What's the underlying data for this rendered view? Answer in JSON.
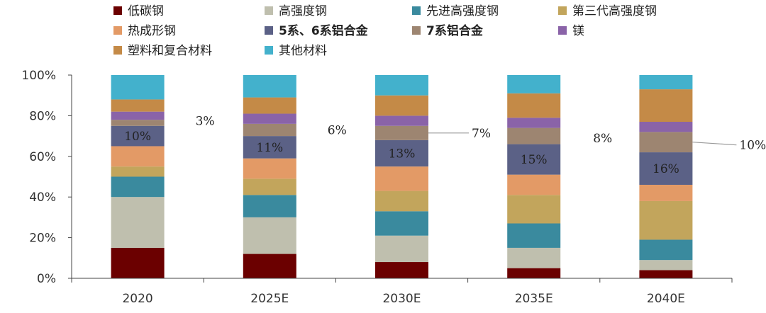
{
  "chart_data": {
    "type": "bar",
    "stacked": true,
    "categories": [
      "2020",
      "2025E",
      "2030E",
      "2035E",
      "2040E"
    ],
    "ylim": [
      0,
      100
    ],
    "yticks": [
      "0%",
      "20%",
      "40%",
      "60%",
      "80%",
      "100%"
    ],
    "legend_position": "top",
    "series": [
      {
        "name": "低碳钢",
        "color": "#6b0000",
        "bold": false,
        "values": [
          15,
          12,
          8,
          5,
          4
        ]
      },
      {
        "name": "高强度钢",
        "color": "#bfbfae",
        "bold": false,
        "values": [
          25,
          18,
          13,
          10,
          5
        ]
      },
      {
        "name": "先进高强度钢",
        "color": "#3a8a9e",
        "bold": false,
        "values": [
          10,
          11,
          12,
          12,
          10
        ]
      },
      {
        "name": "第三代高强度钢",
        "color": "#c2a55c",
        "bold": false,
        "values": [
          5,
          8,
          10,
          14,
          19
        ]
      },
      {
        "name": "热成形钢",
        "color": "#e39a66",
        "bold": false,
        "values": [
          10,
          10,
          12,
          10,
          8
        ]
      },
      {
        "name": "5系、6系铝合金",
        "color": "#5b6186",
        "bold": true,
        "values": [
          10,
          11,
          13,
          15,
          16
        ]
      },
      {
        "name": "7系铝合金",
        "color": "#9d8571",
        "bold": true,
        "values": [
          3,
          6,
          7,
          8,
          10
        ]
      },
      {
        "name": "镁",
        "color": "#8a63a8",
        "bold": false,
        "values": [
          4,
          5,
          5,
          5,
          5
        ]
      },
      {
        "name": "塑料和复合材料",
        "color": "#c48a47",
        "bold": false,
        "values": [
          6,
          8,
          10,
          12,
          16
        ]
      },
      {
        "name": "其他材料",
        "color": "#43b1cc",
        "bold": false,
        "values": [
          12,
          11,
          10,
          9,
          7
        ]
      }
    ],
    "inner_labels": {
      "series": "5系、6系铝合金",
      "values": [
        "10%",
        "11%",
        "13%",
        "15%",
        "16%"
      ]
    },
    "side_labels": {
      "series": "7系铝合金",
      "values": [
        "3%",
        "6%",
        "7%",
        "8%",
        "10%"
      ]
    }
  }
}
